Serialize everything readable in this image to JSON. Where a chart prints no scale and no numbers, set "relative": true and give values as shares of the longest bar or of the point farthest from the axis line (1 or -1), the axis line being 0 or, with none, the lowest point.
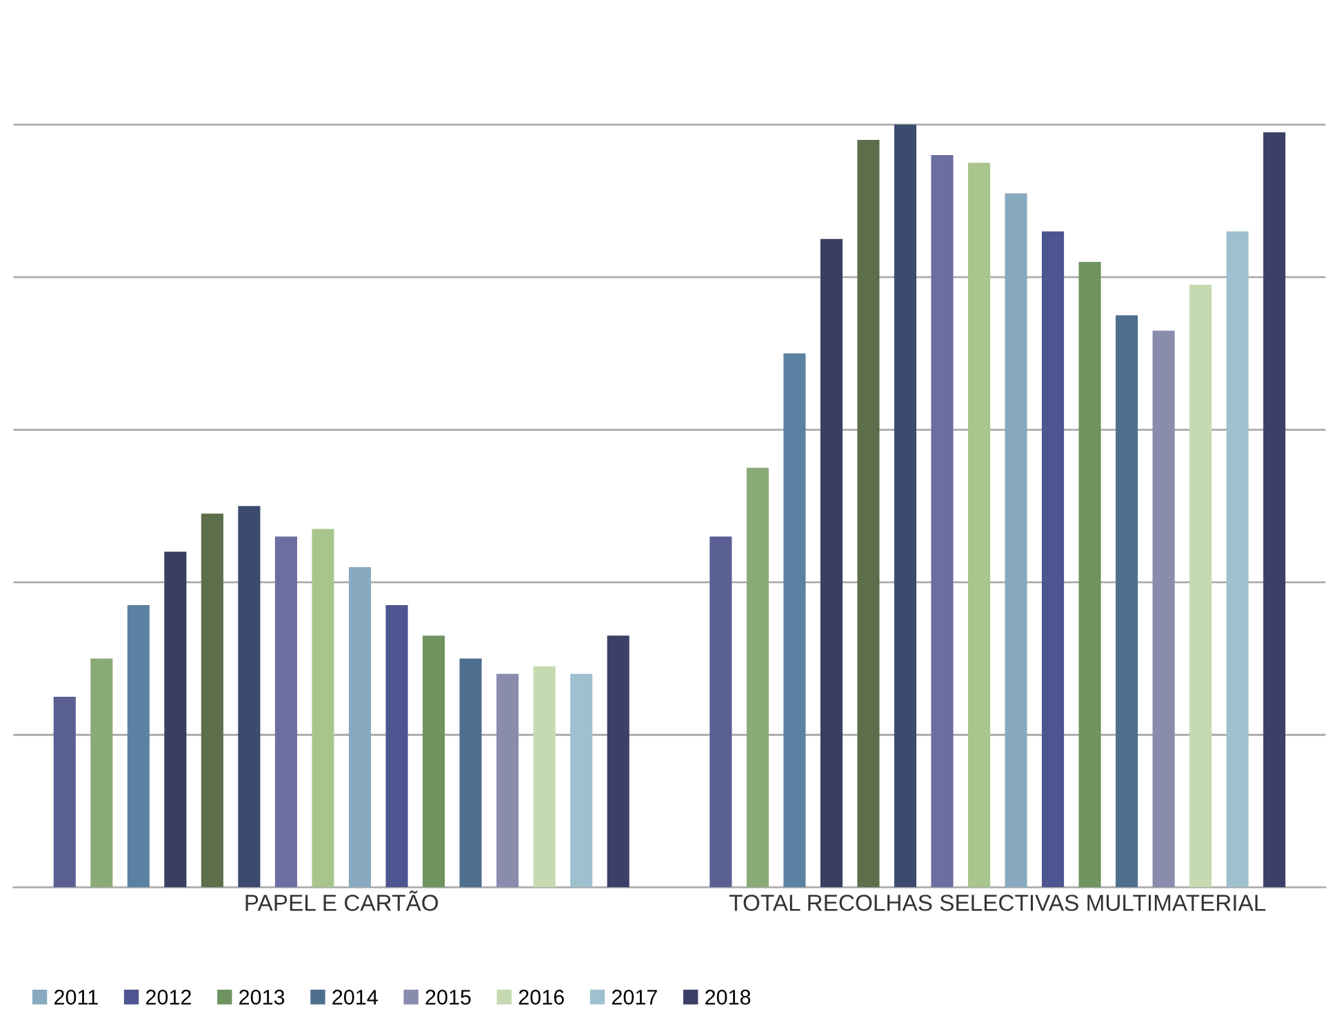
{
  "chart_data": {
    "type": "bar",
    "relative": true,
    "grid": "y",
    "legend": "bottom left",
    "categories": [
      "PAPEL E CARTÃO",
      "TOTAL RECOLHAS SELECTIVAS MULTIMATERIAL"
    ],
    "series": [
      {
        "color": "#5a5f94",
        "values": [
          0.25,
          0.46
        ]
      },
      {
        "color": "#8aab78",
        "values": [
          0.3,
          0.55
        ]
      },
      {
        "color": "#5b82a3",
        "values": [
          0.37,
          0.7
        ]
      },
      {
        "color": "#3a3f62",
        "values": [
          0.44,
          0.85
        ]
      },
      {
        "color": "#5d6e4a",
        "values": [
          0.49,
          0.98
        ]
      },
      {
        "color": "#3d4a70",
        "values": [
          0.5,
          1.0
        ]
      },
      {
        "color": "#6a6ea0",
        "values": [
          0.46,
          0.96
        ]
      },
      {
        "color": "#a8c58e",
        "values": [
          0.47,
          0.95
        ]
      },
      {
        "name": "2011",
        "color": "#88aac0",
        "values": [
          0.42,
          0.91
        ]
      },
      {
        "name": "2012",
        "color": "#4d5590",
        "values": [
          0.37,
          0.86
        ]
      },
      {
        "name": "2013",
        "color": "#6f9460",
        "values": [
          0.33,
          0.82
        ]
      },
      {
        "name": "2014",
        "color": "#4f6f8f",
        "values": [
          0.3,
          0.75
        ]
      },
      {
        "name": "2015",
        "color": "#8a8cae",
        "values": [
          0.28,
          0.73
        ]
      },
      {
        "name": "2016",
        "color": "#c5dab0",
        "values": [
          0.29,
          0.79
        ]
      },
      {
        "name": "2017",
        "color": "#9ec0cf",
        "values": [
          0.28,
          0.86
        ]
      },
      {
        "name": "2018",
        "color": "#3c3f66",
        "values": [
          0.33,
          0.99
        ]
      }
    ]
  }
}
